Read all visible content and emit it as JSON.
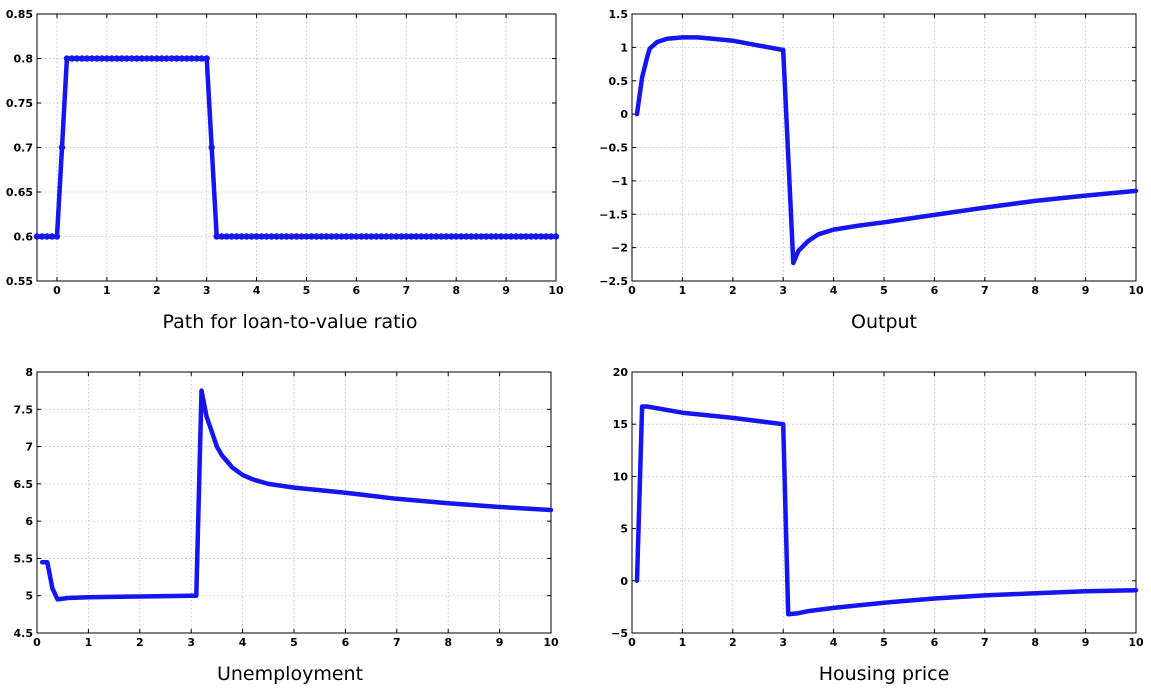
{
  "chart_data": [
    {
      "type": "line",
      "title": "Path for loan-to-value ratio",
      "xlim": [
        -0.4,
        10
      ],
      "ylim": [
        0.55,
        0.85
      ],
      "xticks": [
        "0",
        "1",
        "2",
        "3",
        "4",
        "5",
        "6",
        "7",
        "8",
        "9",
        "10"
      ],
      "yticks": [
        "0.55",
        "0.6",
        "0.65",
        "0.7",
        "0.75",
        "0.8",
        "0.85"
      ],
      "grid": true,
      "markers": true,
      "series": [
        {
          "x": [
            -0.4,
            -0.3,
            -0.2,
            -0.1,
            0,
            0.1,
            0.2,
            0.3,
            0.4,
            0.5,
            0.6,
            0.7,
            0.8,
            0.9,
            1,
            1.1,
            1.2,
            1.3,
            1.4,
            1.5,
            1.6,
            1.7,
            1.8,
            1.9,
            2,
            2.1,
            2.2,
            2.3,
            2.4,
            2.5,
            2.6,
            2.7,
            2.8,
            2.9,
            3,
            3.1,
            3.2,
            3.3,
            3.4,
            3.5,
            3.6,
            3.7,
            3.8,
            3.9,
            4,
            4.1,
            4.2,
            4.3,
            4.4,
            4.5,
            4.6,
            4.7,
            4.8,
            4.9,
            5,
            5.1,
            5.2,
            5.3,
            5.4,
            5.5,
            5.6,
            5.7,
            5.8,
            5.9,
            6,
            6.1,
            6.2,
            6.3,
            6.4,
            6.5,
            6.6,
            6.7,
            6.8,
            6.9,
            7,
            7.1,
            7.2,
            7.3,
            7.4,
            7.5,
            7.6,
            7.7,
            7.8,
            7.9,
            8,
            8.1,
            8.2,
            8.3,
            8.4,
            8.5,
            8.6,
            8.7,
            8.8,
            8.9,
            9,
            9.1,
            9.2,
            9.3,
            9.4,
            9.5,
            9.6,
            9.7,
            9.8,
            9.9,
            10
          ],
          "values": [
            0.6,
            0.6,
            0.6,
            0.6,
            0.6,
            0.7,
            0.8,
            0.8,
            0.8,
            0.8,
            0.8,
            0.8,
            0.8,
            0.8,
            0.8,
            0.8,
            0.8,
            0.8,
            0.8,
            0.8,
            0.8,
            0.8,
            0.8,
            0.8,
            0.8,
            0.8,
            0.8,
            0.8,
            0.8,
            0.8,
            0.8,
            0.8,
            0.8,
            0.8,
            0.8,
            0.7,
            0.6,
            0.6,
            0.6,
            0.6,
            0.6,
            0.6,
            0.6,
            0.6,
            0.6,
            0.6,
            0.6,
            0.6,
            0.6,
            0.6,
            0.6,
            0.6,
            0.6,
            0.6,
            0.6,
            0.6,
            0.6,
            0.6,
            0.6,
            0.6,
            0.6,
            0.6,
            0.6,
            0.6,
            0.6,
            0.6,
            0.6,
            0.6,
            0.6,
            0.6,
            0.6,
            0.6,
            0.6,
            0.6,
            0.6,
            0.6,
            0.6,
            0.6,
            0.6,
            0.6,
            0.6,
            0.6,
            0.6,
            0.6,
            0.6,
            0.6,
            0.6,
            0.6,
            0.6,
            0.6,
            0.6,
            0.6,
            0.6,
            0.6,
            0.6,
            0.6,
            0.6,
            0.6,
            0.6,
            0.6,
            0.6,
            0.6,
            0.6,
            0.6,
            0.6
          ]
        }
      ]
    },
    {
      "type": "line",
      "title": "Output",
      "xlim": [
        0,
        10
      ],
      "ylim": [
        -2.5,
        1.5
      ],
      "xticks": [
        "0",
        "1",
        "2",
        "3",
        "4",
        "5",
        "6",
        "7",
        "8",
        "9",
        "10"
      ],
      "yticks": [
        "−2.5",
        "−2",
        "−1.5",
        "−1",
        "−0.5",
        "0",
        "0.5",
        "1",
        "1.5"
      ],
      "grid": true,
      "markers": false,
      "series": [
        {
          "x": [
            0.1,
            0.2,
            0.3,
            0.35,
            0.5,
            0.7,
            1,
            1.3,
            1.6,
            2,
            2.5,
            3,
            3.2,
            3.3,
            3.5,
            3.7,
            4,
            4.5,
            5,
            6,
            7,
            8,
            9,
            10
          ],
          "values": [
            0,
            0.55,
            0.85,
            0.98,
            1.08,
            1.13,
            1.15,
            1.15,
            1.13,
            1.1,
            1.03,
            0.96,
            -2.23,
            -2.05,
            -1.9,
            -1.8,
            -1.73,
            -1.67,
            -1.62,
            -1.51,
            -1.4,
            -1.3,
            -1.22,
            -1.15
          ]
        }
      ]
    },
    {
      "type": "line",
      "title": "Unemployment",
      "xlim": [
        0,
        10
      ],
      "ylim": [
        4.5,
        8
      ],
      "xticks": [
        "0",
        "1",
        "2",
        "3",
        "4",
        "5",
        "6",
        "7",
        "8",
        "9",
        "10"
      ],
      "yticks": [
        "4.5",
        "5",
        "5.5",
        "6",
        "6.5",
        "7",
        "7.5",
        "8"
      ],
      "grid": true,
      "markers": false,
      "series": [
        {
          "x": [
            0.1,
            0.2,
            0.3,
            0.4,
            0.6,
            1,
            2,
            3,
            3.1,
            3.2,
            3.3,
            3.4,
            3.5,
            3.6,
            3.7,
            3.8,
            4,
            4.2,
            4.5,
            5,
            6,
            7,
            8,
            9,
            10
          ],
          "values": [
            5.45,
            5.45,
            5.1,
            4.95,
            4.97,
            4.98,
            4.99,
            5,
            5,
            7.75,
            7.4,
            7.2,
            7.0,
            6.88,
            6.8,
            6.72,
            6.62,
            6.56,
            6.5,
            6.45,
            6.38,
            6.3,
            6.24,
            6.19,
            6.15
          ]
        }
      ]
    },
    {
      "type": "line",
      "title": "Housing price",
      "xlim": [
        0,
        10
      ],
      "ylim": [
        -5,
        20
      ],
      "xticks": [
        "0",
        "1",
        "2",
        "3",
        "4",
        "5",
        "6",
        "7",
        "8",
        "9",
        "10"
      ],
      "yticks": [
        "−5",
        "0",
        "5",
        "10",
        "15",
        "20"
      ],
      "grid": true,
      "markers": false,
      "series": [
        {
          "x": [
            0.1,
            0.2,
            0.3,
            1,
            2,
            3,
            3.1,
            3.3,
            3.5,
            4,
            5,
            6,
            7,
            8,
            9,
            10
          ],
          "values": [
            0,
            16.7,
            16.7,
            16.1,
            15.6,
            15,
            -3.2,
            -3.1,
            -2.9,
            -2.6,
            -2.1,
            -1.7,
            -1.4,
            -1.2,
            -1.0,
            -0.9
          ]
        }
      ]
    }
  ],
  "colors": {
    "series": "#1515f0",
    "grid": "#b8b8b8",
    "frame": "#000000"
  }
}
